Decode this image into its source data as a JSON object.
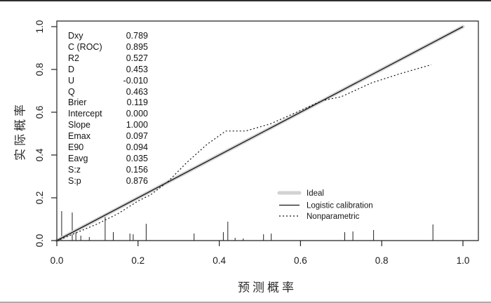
{
  "page": {
    "background": "#ffffff",
    "top_border_color": "#2f2f2f",
    "bottom_strip_color": "#9e9e9e"
  },
  "chart_data": {
    "type": "line",
    "title": "",
    "xlabel": "预测概率",
    "ylabel": "实际概率",
    "xlim": [
      0,
      1.04
    ],
    "ylim": [
      0,
      1.03
    ],
    "grid": false,
    "axis_color": "#222222",
    "ticks": {
      "x": [
        0,
        0.2,
        0.4,
        0.6,
        0.8,
        1.0
      ],
      "y": [
        0,
        0.2,
        0.4,
        0.6,
        0.8,
        1.0
      ],
      "labels": [
        "0.0",
        "0.2",
        "0.4",
        "0.6",
        "0.8",
        "1.0"
      ]
    },
    "legend_position": "bottom-right",
    "series": [
      {
        "name": "Ideal",
        "style": "thick",
        "color": "#d2d2d2",
        "width": 5,
        "points": [
          [
            0,
            0
          ],
          [
            1,
            1
          ]
        ]
      },
      {
        "name": "Logistic calibration",
        "style": "solid",
        "color": "#141414",
        "width": 1.3,
        "points": [
          [
            0,
            0
          ],
          [
            1,
            1
          ]
        ]
      },
      {
        "name": "Nonparametric",
        "style": "dotted",
        "color": "#141414",
        "width": 1.2,
        "points": [
          [
            0.008,
            0.005
          ],
          [
            0.05,
            0.038
          ],
          [
            0.1,
            0.078
          ],
          [
            0.15,
            0.125
          ],
          [
            0.2,
            0.185
          ],
          [
            0.232,
            0.215
          ],
          [
            0.275,
            0.278
          ],
          [
            0.32,
            0.365
          ],
          [
            0.37,
            0.45
          ],
          [
            0.416,
            0.512
          ],
          [
            0.465,
            0.512
          ],
          [
            0.525,
            0.545
          ],
          [
            0.586,
            0.596
          ],
          [
            0.655,
            0.655
          ],
          [
            0.7,
            0.672
          ],
          [
            0.775,
            0.737
          ],
          [
            0.845,
            0.78
          ],
          [
            0.922,
            0.822
          ]
        ]
      }
    ],
    "rug_spikes": [
      [
        0.0,
        42
      ],
      [
        0.012,
        42
      ],
      [
        0.038,
        40
      ],
      [
        0.047,
        12
      ],
      [
        0.059,
        7
      ],
      [
        0.08,
        5
      ],
      [
        0.119,
        37
      ],
      [
        0.139,
        12
      ],
      [
        0.18,
        10
      ],
      [
        0.188,
        9
      ],
      [
        0.22,
        24
      ],
      [
        0.338,
        10
      ],
      [
        0.41,
        12
      ],
      [
        0.421,
        27
      ],
      [
        0.439,
        4
      ],
      [
        0.459,
        3
      ],
      [
        0.509,
        9
      ],
      [
        0.528,
        10
      ],
      [
        0.709,
        12
      ],
      [
        0.729,
        13
      ],
      [
        0.78,
        15
      ],
      [
        0.926,
        23
      ]
    ],
    "stats": [
      [
        "Dxy",
        "0.789"
      ],
      [
        "C (ROC)",
        "0.895"
      ],
      [
        "R2",
        "0.527"
      ],
      [
        "D",
        "0.453"
      ],
      [
        "U",
        "-0.010"
      ],
      [
        "Q",
        "0.463"
      ],
      [
        "Brier",
        "0.119"
      ],
      [
        "Intercept",
        "0.000"
      ],
      [
        "Slope",
        "1.000"
      ],
      [
        "Emax",
        "0.097"
      ],
      [
        "E90",
        "0.094"
      ],
      [
        "Eavg",
        "0.035"
      ],
      [
        "S:z",
        "0.156"
      ],
      [
        "S:p",
        "0.876"
      ]
    ]
  }
}
